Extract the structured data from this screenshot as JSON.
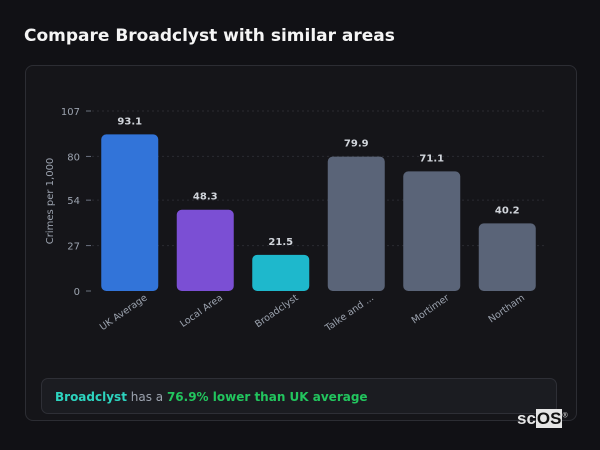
{
  "header": {
    "title": "Compare Broadclyst with similar areas"
  },
  "chart_data": {
    "type": "bar",
    "categories": [
      "UK Average",
      "Local Area",
      "Broadclyst",
      "Talke and ...",
      "Mortimer",
      "Northam"
    ],
    "values": [
      93.1,
      48.3,
      21.5,
      79.9,
      71.1,
      40.2
    ],
    "data_labels": [
      "93.1",
      "48.3",
      "21.5",
      "79.9",
      "71.1",
      "40.2"
    ],
    "colors": [
      "#3274d9",
      "#7b4fd4",
      "#1eb8cc",
      "#5a6478",
      "#5a6478",
      "#5a6478"
    ],
    "ylabel": "Crimes per 1,000",
    "xlabel": "",
    "ylim": [
      0,
      107
    ],
    "yticks": [
      0,
      27,
      54,
      80,
      107
    ],
    "grid": true
  },
  "footer": {
    "area": "Broadclyst",
    "middle": " has a ",
    "comparison": "76.9% lower than UK average"
  },
  "logo": {
    "text_a": "sc",
    "text_b": "OS",
    "mark": "®"
  }
}
